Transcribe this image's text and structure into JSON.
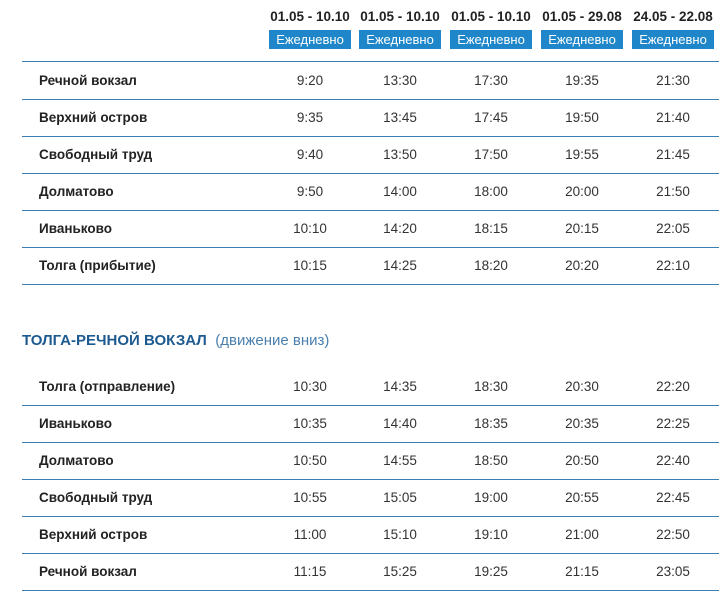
{
  "columns": [
    {
      "dates": "01.05 - 10.10",
      "days": "Ежедневно"
    },
    {
      "dates": "01.05 - 10.10",
      "days": "Ежедневно"
    },
    {
      "dates": "01.05 - 10.10",
      "days": "Ежедневно"
    },
    {
      "dates": "01.05 - 29.08",
      "days": "Ежедневно"
    },
    {
      "dates": "24.05 - 22.08",
      "days": "Ежедневно"
    }
  ],
  "upstream": {
    "rows": [
      {
        "stop": "Речной вокзал",
        "times": [
          "9:20",
          "13:30",
          "17:30",
          "19:35",
          "21:30"
        ]
      },
      {
        "stop": "Верхний остров",
        "times": [
          "9:35",
          "13:45",
          "17:45",
          "19:50",
          "21:40"
        ]
      },
      {
        "stop": "Свободный труд",
        "times": [
          "9:40",
          "13:50",
          "17:50",
          "19:55",
          "21:45"
        ]
      },
      {
        "stop": "Долматово",
        "times": [
          "9:50",
          "14:00",
          "18:00",
          "20:00",
          "21:50"
        ]
      },
      {
        "stop": "Иваньково",
        "times": [
          "10:10",
          "14:20",
          "18:15",
          "20:15",
          "22:05"
        ]
      },
      {
        "stop": "Толга (прибытие)",
        "times": [
          "10:15",
          "14:25",
          "18:20",
          "20:20",
          "22:10"
        ]
      }
    ]
  },
  "downstream": {
    "title": "ТОЛГА-РЕЧНОЙ ВОКЗАЛ",
    "direction": "(движение вниз)",
    "rows": [
      {
        "stop": "Толга (отправление)",
        "times": [
          "10:30",
          "14:35",
          "18:30",
          "20:30",
          "22:20"
        ]
      },
      {
        "stop": "Иваньково",
        "times": [
          "10:35",
          "14:40",
          "18:35",
          "20:35",
          "22:25"
        ]
      },
      {
        "stop": "Долматово",
        "times": [
          "10:50",
          "14:55",
          "18:50",
          "20:50",
          "22:40"
        ]
      },
      {
        "stop": "Свободный труд",
        "times": [
          "10:55",
          "15:05",
          "19:00",
          "20:55",
          "22:45"
        ]
      },
      {
        "stop": "Верхний остров",
        "times": [
          "11:00",
          "15:10",
          "19:10",
          "21:00",
          "22:50"
        ]
      },
      {
        "stop": "Речной вокзал",
        "times": [
          "11:15",
          "15:25",
          "19:25",
          "21:15",
          "23:05"
        ]
      }
    ]
  }
}
